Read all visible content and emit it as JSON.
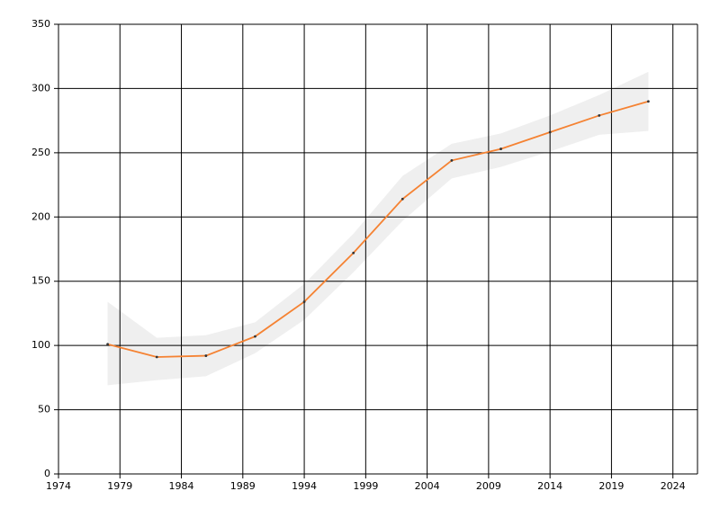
{
  "chart_data": {
    "type": "line",
    "x": [
      1978,
      1982,
      1986,
      1990,
      1994,
      1998,
      2002,
      2006,
      2010,
      2014,
      2018,
      2022
    ],
    "values": [
      101,
      91,
      92,
      107,
      134,
      172,
      214,
      244,
      253,
      266,
      279,
      290
    ],
    "color": "#f58232",
    "band": {
      "lower": [
        69,
        73,
        76,
        94,
        120,
        157,
        197,
        230,
        239,
        251,
        264,
        267
      ],
      "upper": [
        134,
        106,
        108,
        118,
        148,
        187,
        232,
        257,
        265,
        279,
        295,
        313
      ],
      "color": "#efefef"
    },
    "xlim": [
      1974,
      2026
    ],
    "xticks": [
      1974,
      1979,
      1984,
      1989,
      1994,
      1999,
      2004,
      2009,
      2014,
      2019,
      2024
    ],
    "ylim": [
      0,
      350
    ],
    "yticks": [
      0,
      50,
      100,
      150,
      200,
      250,
      300,
      350
    ],
    "grid": true
  }
}
